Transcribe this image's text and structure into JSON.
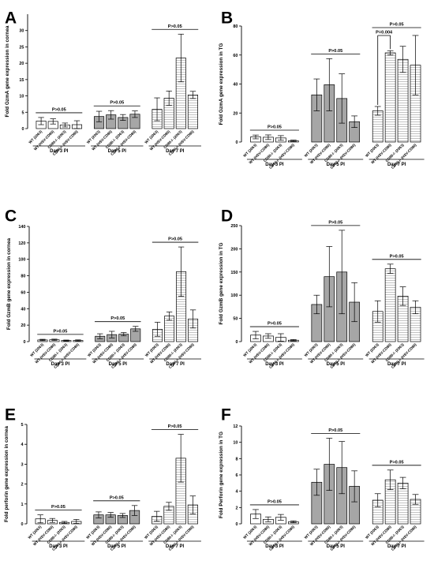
{
  "chart_data": [
    {
      "type": "bar",
      "panel_label": "A",
      "ylabel": "Fold GzmA gene expression in cornea",
      "ylim": [
        0,
        35
      ],
      "yticks": [
        0,
        5,
        10,
        15,
        20,
        25,
        30
      ],
      "categories": [
        "WT (2063)",
        "WT (HSV-CD80)",
        "CD80-/- (2063)",
        "CD80-/- (HSV-CD80)"
      ],
      "groups": [
        {
          "label": "Day 3 PI",
          "values": [
            2.3,
            2.2,
            1.1,
            1.2
          ],
          "errors": [
            1.1,
            0.8,
            0.6,
            1.2
          ],
          "annotation": "P>0.05"
        },
        {
          "label": "Day 5 PI",
          "values": [
            3.7,
            4.2,
            3.4,
            4.4
          ],
          "errors": [
            1.6,
            1.3,
            0.9,
            1.0
          ],
          "annotation": "P>0.05"
        },
        {
          "label": "Day 7 PI",
          "values": [
            5.9,
            9.3,
            21.6,
            10.3
          ],
          "errors": [
            3.5,
            2.2,
            7.3,
            1.1
          ],
          "annotation": "P>0.05"
        }
      ]
    },
    {
      "type": "bar",
      "panel_label": "B",
      "ylabel": "Fold GzmA gene expression in TG",
      "ylim": [
        0,
        80
      ],
      "yticks": [
        0,
        20,
        40,
        60,
        80
      ],
      "categories": [
        "WT (2063)",
        "WT (HSV-CD80)",
        "CD80-/- (2063)",
        "CD80-/- (HSV-CD80)"
      ],
      "groups": [
        {
          "label": "Day 3 PI",
          "values": [
            3.5,
            3.3,
            2.8,
            0.8
          ],
          "errors": [
            1.3,
            1.6,
            1.6,
            0.5
          ],
          "annotation": "P>0.05"
        },
        {
          "label": "Day 5 PI",
          "values": [
            32.5,
            39.5,
            30.0,
            14.0
          ],
          "errors": [
            11.0,
            18.0,
            17.0,
            4.0
          ],
          "annotation": "P>0.05"
        },
        {
          "label": "Day 7 PI",
          "values": [
            21.5,
            61.5,
            57.0,
            53.0
          ],
          "errors": [
            3.0,
            1.5,
            9.0,
            20.5
          ],
          "annotation": "P>0.05",
          "pair_annotation": "P=0.004"
        }
      ]
    },
    {
      "type": "bar",
      "panel_label": "C",
      "ylabel": "Fold GzmB gene expression in cornea",
      "ylim": [
        0,
        140
      ],
      "yticks": [
        0,
        20,
        40,
        60,
        80,
        100,
        120,
        140
      ],
      "categories": [
        "WT (2063)",
        "WT (HSV-CD80)",
        "CD80-/- (2063)",
        "CD80-/- (HSV-CD80)"
      ],
      "groups": [
        {
          "label": "Day 3 PI",
          "values": [
            2.0,
            2.2,
            1.3,
            1.3
          ],
          "errors": [
            0.8,
            0.8,
            0.6,
            0.8
          ],
          "annotation": "P>0.05"
        },
        {
          "label": "Day 5 PI",
          "values": [
            6.5,
            8.5,
            9.0,
            15.5
          ],
          "errors": [
            3.0,
            4.0,
            2.0,
            3.0
          ],
          "annotation": "P>0.05"
        },
        {
          "label": "Day 7 PI",
          "values": [
            15.0,
            31.0,
            85.0,
            27.5
          ],
          "errors": [
            8.5,
            5.0,
            30.0,
            11.0
          ],
          "annotation": "P>0.05"
        }
      ]
    },
    {
      "type": "bar",
      "panel_label": "D",
      "ylabel": "Fold GzmB gene expression in TG",
      "ylim": [
        0,
        250
      ],
      "yticks": [
        0,
        50,
        100,
        150,
        200,
        250
      ],
      "categories": [
        "WT (2063)",
        "WT (HSV-CD80)",
        "CD80-/- (2063)",
        "CD80-/- (HSV-CD80)"
      ],
      "groups": [
        {
          "label": "Day 3 PI",
          "values": [
            14.0,
            12.0,
            9.0,
            3.0
          ],
          "errors": [
            8.0,
            5.0,
            8.0,
            1.5
          ],
          "annotation": "P>0.05"
        },
        {
          "label": "Day 5 PI",
          "values": [
            80.0,
            140.0,
            150.0,
            85.0
          ],
          "errors": [
            20.0,
            65.0,
            90.0,
            42.0
          ],
          "annotation": "P>0.05"
        },
        {
          "label": "Day 7 PI",
          "values": [
            65.0,
            157.0,
            98.0,
            74.0
          ],
          "errors": [
            23.0,
            10.0,
            20.0,
            14.0
          ],
          "annotation": "P>0.05"
        }
      ]
    },
    {
      "type": "bar",
      "panel_label": "E",
      "ylabel": "Fold perforin gene expression in cornea",
      "ylim": [
        0,
        5
      ],
      "yticks": [
        0,
        1,
        2,
        3,
        4,
        5
      ],
      "categories": [
        "WT (2063)",
        "WT (HSV-CD80)",
        "CD80-/- (2063)",
        "CD80-/- (HSV-CD80)"
      ],
      "groups": [
        {
          "label": "Day 3 PI",
          "values": [
            0.25,
            0.17,
            0.07,
            0.12
          ],
          "errors": [
            0.2,
            0.1,
            0.05,
            0.1
          ],
          "annotation": "P>0.05"
        },
        {
          "label": "Day 5 PI",
          "values": [
            0.45,
            0.45,
            0.42,
            0.67
          ],
          "errors": [
            0.15,
            0.12,
            0.1,
            0.25
          ],
          "annotation": "P>0.05"
        },
        {
          "label": "Day 7 PI",
          "values": [
            0.38,
            0.88,
            3.3,
            0.95
          ],
          "errors": [
            0.25,
            0.2,
            1.2,
            0.45
          ],
          "annotation": "P>0.05"
        }
      ]
    },
    {
      "type": "bar",
      "panel_label": "F",
      "ylabel": "Fold Perforin gene expression in TG",
      "ylim": [
        0,
        12
      ],
      "yticks": [
        0,
        2,
        4,
        6,
        8,
        10,
        12
      ],
      "categories": [
        "WT (2063)",
        "WT (HSV-CD80)",
        "CD80-/- (2063)",
        "CD80-/- (HSV-CD80)"
      ],
      "groups": [
        {
          "label": "Day 3 PI",
          "values": [
            1.2,
            0.55,
            0.8,
            0.25
          ],
          "errors": [
            0.55,
            0.3,
            0.35,
            0.12
          ],
          "annotation": "P>0.05"
        },
        {
          "label": "Day 5 PI",
          "values": [
            5.1,
            7.3,
            6.9,
            4.6
          ],
          "errors": [
            1.6,
            3.2,
            3.2,
            1.9
          ],
          "annotation": "P>0.05"
        },
        {
          "label": "Day 7 PI",
          "values": [
            2.9,
            5.4,
            5.0,
            3.0
          ],
          "errors": [
            0.8,
            1.2,
            0.7,
            0.6
          ],
          "annotation": "P>0.05"
        }
      ]
    }
  ]
}
